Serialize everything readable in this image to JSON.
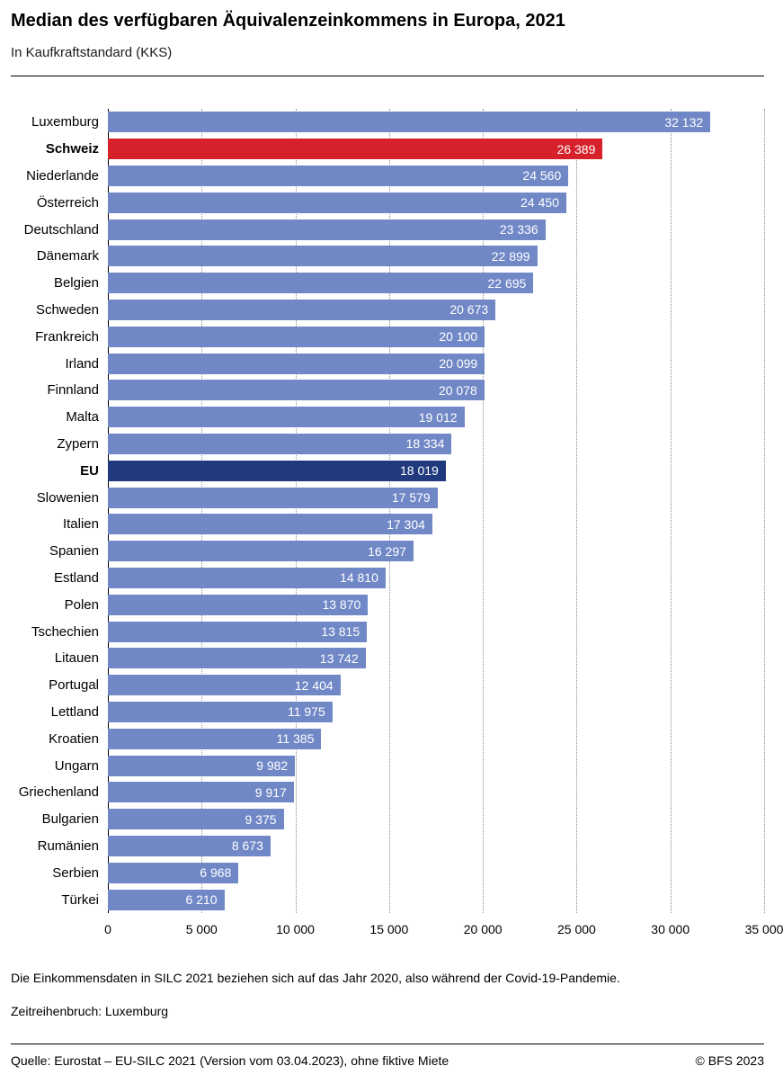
{
  "header": {
    "title": "Median des verfügbaren Äquivalenzeinkommens in Europa, 2021",
    "subtitle": "In Kaufkraftstandard (KKS)"
  },
  "chart_data": {
    "type": "bar",
    "orientation": "horizontal",
    "xlim": [
      0,
      35000
    ],
    "grid": "dotted-vertical",
    "x_ticks": [
      "0",
      "5 000",
      "10 000",
      "15 000",
      "20 000",
      "25 000",
      "30 000",
      "35 000"
    ],
    "x_tick_values": [
      0,
      5000,
      10000,
      15000,
      20000,
      25000,
      30000,
      35000
    ],
    "colors": {
      "default": "#7188C7",
      "red": "#D6212B",
      "navy": "#203A7D"
    },
    "bars": [
      {
        "label": "Luxemburg",
        "value": 32132,
        "display": "32 132",
        "color": "default",
        "bold": false
      },
      {
        "label": "Schweiz",
        "value": 26389,
        "display": "26 389",
        "color": "red",
        "bold": true
      },
      {
        "label": "Niederlande",
        "value": 24560,
        "display": "24 560",
        "color": "default",
        "bold": false
      },
      {
        "label": "Österreich",
        "value": 24450,
        "display": "24 450",
        "color": "default",
        "bold": false
      },
      {
        "label": "Deutschland",
        "value": 23336,
        "display": "23 336",
        "color": "default",
        "bold": false
      },
      {
        "label": "Dänemark",
        "value": 22899,
        "display": "22 899",
        "color": "default",
        "bold": false
      },
      {
        "label": "Belgien",
        "value": 22695,
        "display": "22 695",
        "color": "default",
        "bold": false
      },
      {
        "label": "Schweden",
        "value": 20673,
        "display": "20 673",
        "color": "default",
        "bold": false
      },
      {
        "label": "Frankreich",
        "value": 20100,
        "display": "20 100",
        "color": "default",
        "bold": false
      },
      {
        "label": "Irland",
        "value": 20099,
        "display": "20 099",
        "color": "default",
        "bold": false
      },
      {
        "label": "Finnland",
        "value": 20078,
        "display": "20 078",
        "color": "default",
        "bold": false
      },
      {
        "label": "Malta",
        "value": 19012,
        "display": "19 012",
        "color": "default",
        "bold": false
      },
      {
        "label": "Zypern",
        "value": 18334,
        "display": "18 334",
        "color": "default",
        "bold": false
      },
      {
        "label": "EU",
        "value": 18019,
        "display": "18 019",
        "color": "navy",
        "bold": true
      },
      {
        "label": "Slowenien",
        "value": 17579,
        "display": "17 579",
        "color": "default",
        "bold": false
      },
      {
        "label": "Italien",
        "value": 17304,
        "display": "17 304",
        "color": "default",
        "bold": false
      },
      {
        "label": "Spanien",
        "value": 16297,
        "display": "16 297",
        "color": "default",
        "bold": false
      },
      {
        "label": "Estland",
        "value": 14810,
        "display": "14 810",
        "color": "default",
        "bold": false
      },
      {
        "label": "Polen",
        "value": 13870,
        "display": "13 870",
        "color": "default",
        "bold": false
      },
      {
        "label": "Tschechien",
        "value": 13815,
        "display": "13 815",
        "color": "default",
        "bold": false
      },
      {
        "label": "Litauen",
        "value": 13742,
        "display": "13 742",
        "color": "default",
        "bold": false
      },
      {
        "label": "Portugal",
        "value": 12404,
        "display": "12 404",
        "color": "default",
        "bold": false
      },
      {
        "label": "Lettland",
        "value": 11975,
        "display": "11 975",
        "color": "default",
        "bold": false
      },
      {
        "label": "Kroatien",
        "value": 11385,
        "display": "11 385",
        "color": "default",
        "bold": false
      },
      {
        "label": "Ungarn",
        "value": 9982,
        "display": "9 982",
        "color": "default",
        "bold": false
      },
      {
        "label": "Griechenland",
        "value": 9917,
        "display": "9 917",
        "color": "default",
        "bold": false
      },
      {
        "label": "Bulgarien",
        "value": 9375,
        "display": "9 375",
        "color": "default",
        "bold": false
      },
      {
        "label": "Rumänien",
        "value": 8673,
        "display": "8 673",
        "color": "default",
        "bold": false
      },
      {
        "label": "Serbien",
        "value": 6968,
        "display": "6 968",
        "color": "default",
        "bold": false
      },
      {
        "label": "Türkei",
        "value": 6210,
        "display": "6 210",
        "color": "default",
        "bold": false
      }
    ],
    "title": "Median des verfügbaren Äquivalenzeinkommens in Europa, 2021",
    "xlabel": "",
    "ylabel": ""
  },
  "footnotes": {
    "note1": "Die Einkommensdaten in SILC 2021 beziehen sich auf das Jahr 2020, also während der Covid-19-Pandemie.",
    "note2": "Zeitreihenbruch: Luxemburg"
  },
  "footer": {
    "source": "Quelle: Eurostat – EU-SILC 2021 (Version vom 03.04.2023), ohne fiktive Miete",
    "copyright": "© BFS 2023"
  }
}
